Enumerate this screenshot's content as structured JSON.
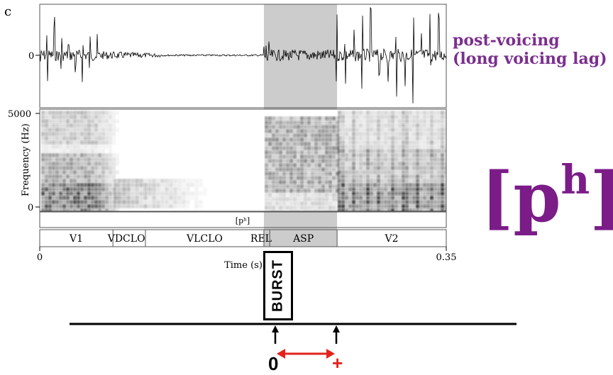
{
  "panel_letter": "c",
  "annotation": {
    "line1": "post-voicing",
    "line2": "(long voicing lag)",
    "color": "#7b2f8e"
  },
  "big_symbol": {
    "base": "[p",
    "sup": "h",
    "close": "]",
    "color": "#7b1c88"
  },
  "waveform": {
    "zero_label": "0"
  },
  "spectrogram": {
    "ylabel": "Frequency (Hz)",
    "ytick_top": "5000",
    "ytick_bottom": "0"
  },
  "tiers": {
    "phone_tier": "[pʰ]",
    "segments": [
      {
        "label": "V1",
        "start": 0.0,
        "end": 0.063
      },
      {
        "label": "VDCLO",
        "start": 0.063,
        "end": 0.091
      },
      {
        "label": "VLCLO",
        "start": 0.091,
        "end": 0.193
      },
      {
        "label": "REL",
        "start": 0.193,
        "end": 0.198
      },
      {
        "label": "ASP",
        "start": 0.198,
        "end": 0.256
      },
      {
        "label": "V2",
        "start": 0.256,
        "end": 0.35
      }
    ]
  },
  "time_axis": {
    "label": "Time (s)",
    "start_label": "0",
    "end_label": "0.35",
    "min": 0,
    "max": 0.35
  },
  "highlight": {
    "start": 0.193,
    "end": 0.256,
    "color": "#cccccc"
  },
  "timeline": {
    "burst_label": "BURST",
    "zero_label": "0",
    "plus_label": "+",
    "arrow_color": "#e3231b"
  }
}
